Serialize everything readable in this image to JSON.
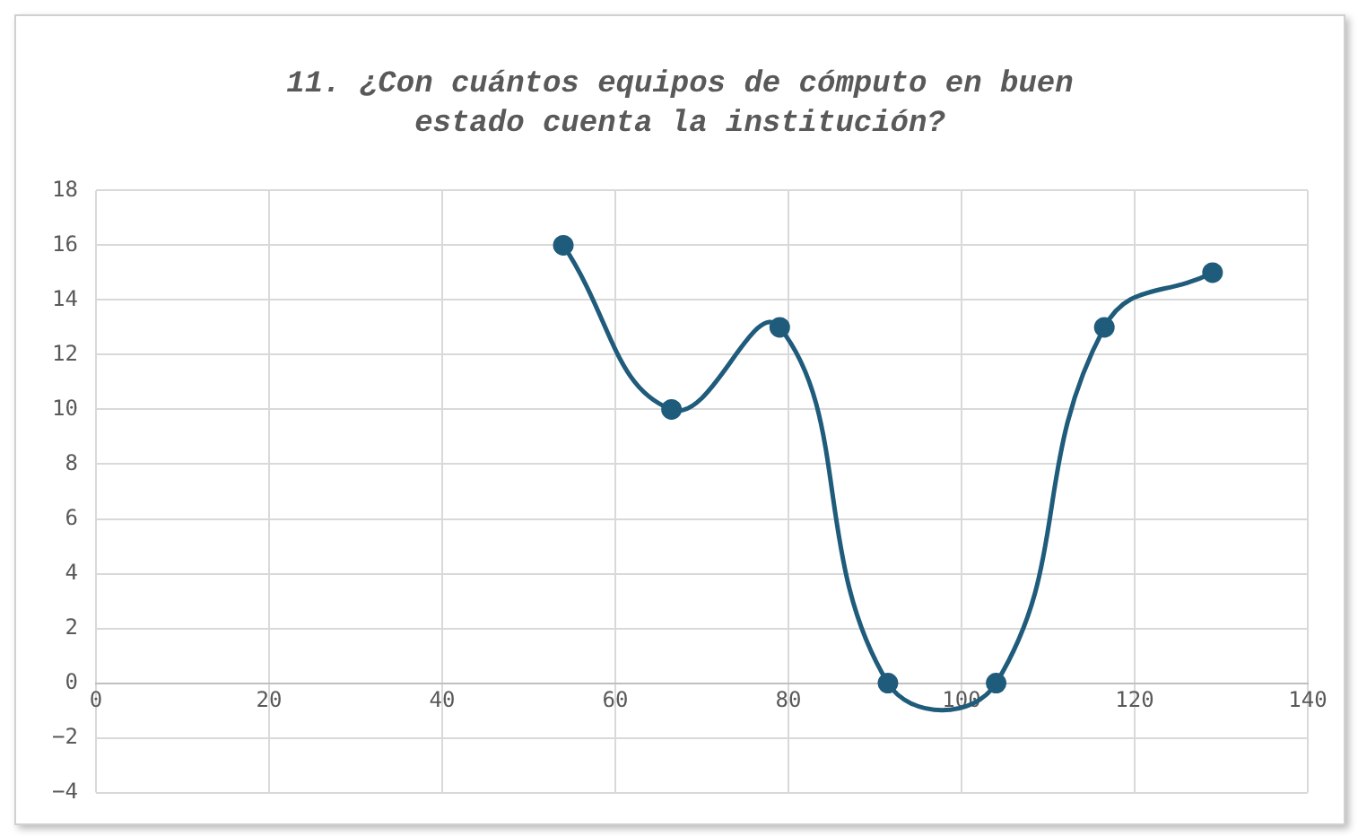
{
  "chart_data": {
    "type": "line",
    "title": "11. ¿Con cuántos equipos de cómputo en buen estado cuenta la institución?",
    "x": [
      54,
      66.5,
      79,
      91.5,
      104,
      116.5,
      129
    ],
    "series": [
      {
        "color": "#1f5b7a",
        "values": [
          16,
          10,
          13,
          0,
          0,
          13,
          15
        ]
      }
    ],
    "xlim": [
      0,
      140
    ],
    "xticks": [
      0,
      20,
      40,
      60,
      80,
      100,
      120,
      140
    ],
    "ylim": [
      -4,
      18
    ],
    "yticks": [
      {
        "value": -4,
        "label": "−4"
      },
      {
        "value": -2,
        "label": "−2"
      },
      0,
      2,
      4,
      6,
      8,
      10,
      12,
      14,
      16,
      18
    ],
    "grid": true,
    "legend": false,
    "marker": "circle",
    "line_style": "solid"
  }
}
